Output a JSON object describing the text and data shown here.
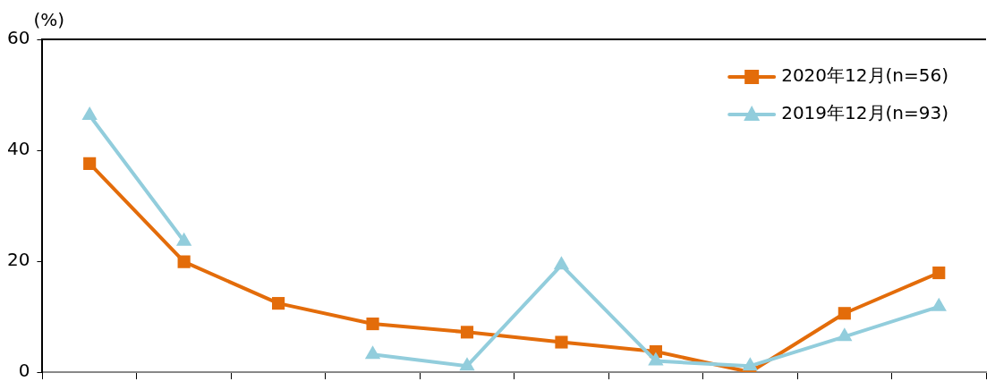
{
  "chart_data": {
    "type": "line",
    "ylabel": "(%)",
    "categories": [
      null,
      null,
      null,
      null,
      null,
      null,
      null,
      null,
      null,
      null
    ],
    "ylim": [
      0,
      60
    ],
    "yticks": [
      0,
      20,
      40,
      60
    ],
    "tick_labels": "y",
    "grid": false,
    "legend": "top right",
    "line_style": "solid",
    "series": [
      {
        "name": "2020年12月(n=56)",
        "color": "#e36c0a",
        "marker": "square",
        "values": [
          37.6,
          19.9,
          12.4,
          8.7,
          7.2,
          5.4,
          3.7,
          0,
          10.6,
          17.9
        ]
      },
      {
        "name": "2019年12月(n=93)",
        "color": "#92cddc",
        "marker": "triangle",
        "values": [
          46.3,
          23.6,
          null,
          3.2,
          1.1,
          19.3,
          2.0,
          1.1,
          6.4,
          11.8
        ]
      }
    ]
  }
}
